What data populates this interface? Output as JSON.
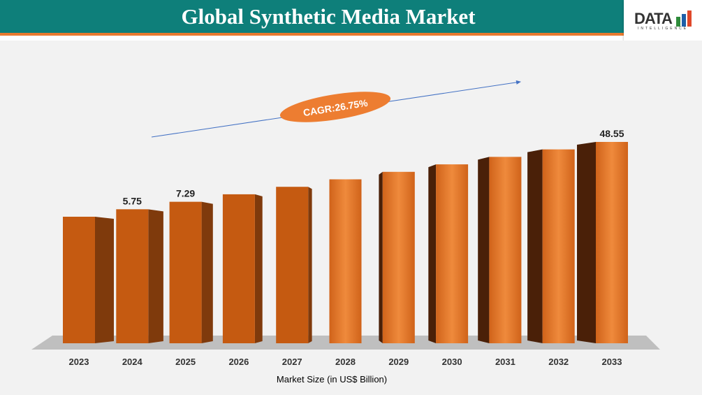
{
  "header": {
    "title": "Global Synthetic Media Market"
  },
  "logo": {
    "text": "DATA",
    "subtext": "INTELLIGENCE"
  },
  "chart_data": {
    "type": "bar",
    "title": "Global Synthetic Media Market",
    "xlabel": "Market Size (in US$ Billion)",
    "categories": [
      "2023",
      "2024",
      "2025",
      "2026",
      "2027",
      "2028",
      "2029",
      "2030",
      "2031",
      "2032",
      "2033"
    ],
    "values": [
      4.54,
      5.75,
      7.29,
      9.24,
      11.71,
      14.85,
      18.82,
      23.85,
      30.23,
      38.32,
      48.55
    ],
    "data_labels": [
      "",
      "5.75",
      "7.29",
      "",
      "",
      "",
      "",
      "",
      "",
      "",
      "48.55"
    ],
    "annotation": "CAGR:26.75%",
    "bar_color": "#c55a11",
    "grid": false,
    "legend": "none"
  }
}
